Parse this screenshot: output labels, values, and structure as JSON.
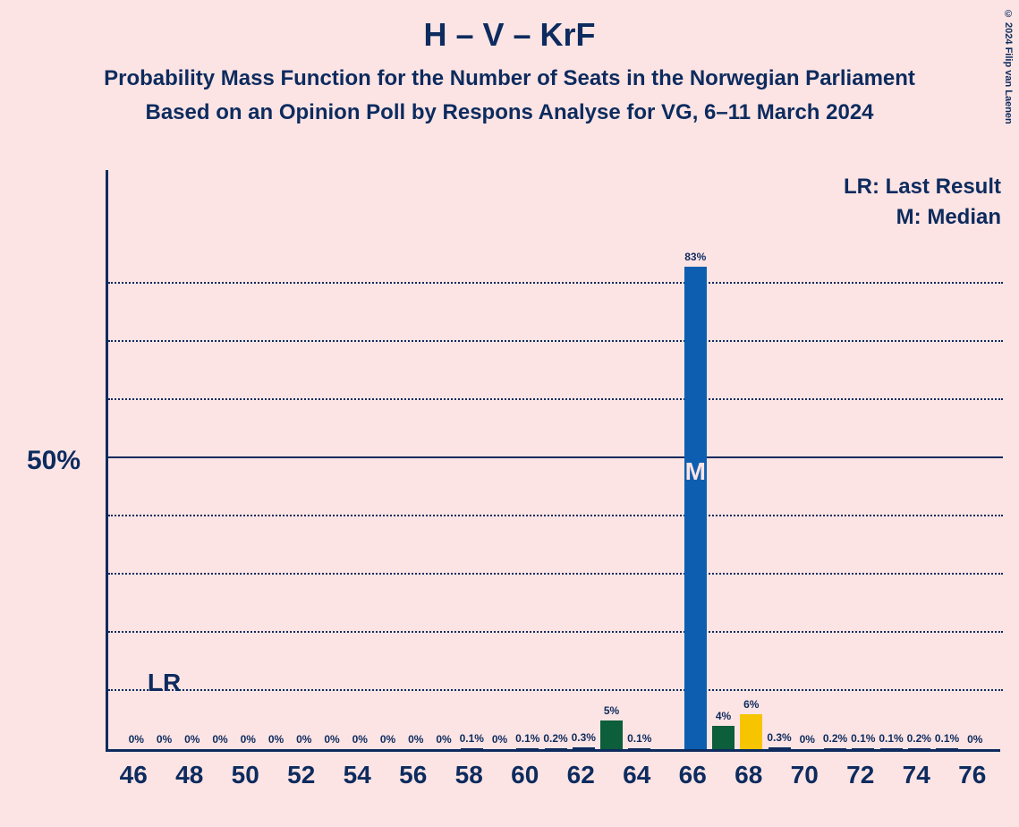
{
  "title": "H – V – KrF",
  "subtitle1": "Probability Mass Function for the Number of Seats in the Norwegian Parliament",
  "subtitle2": "Based on an Opinion Poll by Respons Analyse for VG, 6–11 March 2024",
  "copyright": "© 2024 Filip van Laenen",
  "legend_lr": "LR: Last Result",
  "legend_m": "M: Median",
  "ylabel_50": "50%",
  "lr_text": "LR",
  "median_text": "M",
  "chart": {
    "type": "bar",
    "xlim": [
      45,
      77
    ],
    "ylim": [
      0,
      100
    ],
    "ymax_display": 83,
    "grid_step": 10,
    "grid_solid_at": 50,
    "background_color": "#fce4e4",
    "axis_color": "#0d2b5e",
    "grid_color": "#0d2b5e",
    "bar_default_color": "#0d2b5e",
    "lr_position": 47,
    "median_position": 66,
    "x_ticks": [
      46,
      48,
      50,
      52,
      54,
      56,
      58,
      60,
      62,
      64,
      66,
      68,
      70,
      72,
      74,
      76
    ],
    "bars": [
      {
        "x": 46,
        "value": 0,
        "label": "0%",
        "color": "#0d2b5e"
      },
      {
        "x": 47,
        "value": 0,
        "label": "0%",
        "color": "#0d2b5e"
      },
      {
        "x": 48,
        "value": 0,
        "label": "0%",
        "color": "#0d2b5e"
      },
      {
        "x": 49,
        "value": 0,
        "label": "0%",
        "color": "#0d2b5e"
      },
      {
        "x": 50,
        "value": 0,
        "label": "0%",
        "color": "#0d2b5e"
      },
      {
        "x": 51,
        "value": 0,
        "label": "0%",
        "color": "#0d2b5e"
      },
      {
        "x": 52,
        "value": 0,
        "label": "0%",
        "color": "#0d2b5e"
      },
      {
        "x": 53,
        "value": 0,
        "label": "0%",
        "color": "#0d2b5e"
      },
      {
        "x": 54,
        "value": 0,
        "label": "0%",
        "color": "#0d2b5e"
      },
      {
        "x": 55,
        "value": 0,
        "label": "0%",
        "color": "#0d2b5e"
      },
      {
        "x": 56,
        "value": 0,
        "label": "0%",
        "color": "#0d2b5e"
      },
      {
        "x": 57,
        "value": 0,
        "label": "0%",
        "color": "#0d2b5e"
      },
      {
        "x": 58,
        "value": 0.1,
        "label": "0.1%",
        "color": "#0d2b5e"
      },
      {
        "x": 59,
        "value": 0,
        "label": "0%",
        "color": "#0d2b5e"
      },
      {
        "x": 60,
        "value": 0.1,
        "label": "0.1%",
        "color": "#0d2b5e"
      },
      {
        "x": 61,
        "value": 0.2,
        "label": "0.2%",
        "color": "#0d2b5e"
      },
      {
        "x": 62,
        "value": 0.3,
        "label": "0.3%",
        "color": "#0d2b5e"
      },
      {
        "x": 63,
        "value": 5,
        "label": "5%",
        "color": "#0d5e3a"
      },
      {
        "x": 64,
        "value": 0.1,
        "label": "0.1%",
        "color": "#0d2b5e"
      },
      {
        "x": 66,
        "value": 83,
        "label": "83%",
        "color": "#0d5eb0"
      },
      {
        "x": 67,
        "value": 4,
        "label": "4%",
        "color": "#0d5e3a"
      },
      {
        "x": 68,
        "value": 6,
        "label": "6%",
        "color": "#f6c500"
      },
      {
        "x": 69,
        "value": 0.3,
        "label": "0.3%",
        "color": "#0d2b5e"
      },
      {
        "x": 70,
        "value": 0,
        "label": "0%",
        "color": "#0d2b5e"
      },
      {
        "x": 71,
        "value": 0.2,
        "label": "0.2%",
        "color": "#0d2b5e"
      },
      {
        "x": 72,
        "value": 0.1,
        "label": "0.1%",
        "color": "#0d2b5e"
      },
      {
        "x": 73,
        "value": 0.1,
        "label": "0.1%",
        "color": "#0d2b5e"
      },
      {
        "x": 74,
        "value": 0.2,
        "label": "0.2%",
        "color": "#0d2b5e"
      },
      {
        "x": 75,
        "value": 0.1,
        "label": "0.1%",
        "color": "#0d2b5e"
      },
      {
        "x": 76,
        "value": 0,
        "label": "0%",
        "color": "#0d2b5e"
      }
    ]
  }
}
